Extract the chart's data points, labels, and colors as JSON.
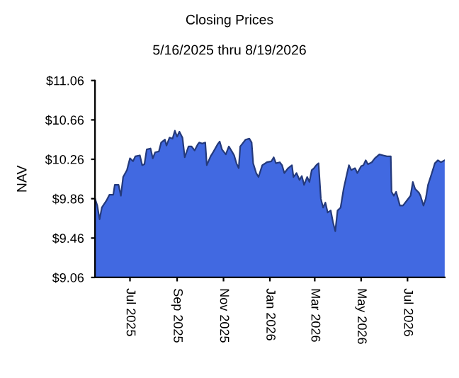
{
  "chart_data": {
    "type": "area",
    "title": "Closing Prices",
    "subtitle": "5/16/2025 thru 8/19/2026",
    "ylabel": "NAV",
    "x": [
      "2025-05-16",
      "2025-05-19",
      "2025-05-22",
      "2025-05-25",
      "2025-05-31",
      "2025-06-04",
      "2025-06-09",
      "2025-06-11",
      "2025-06-16",
      "2025-06-19",
      "2025-06-22",
      "2025-06-27",
      "2025-07-01",
      "2025-07-05",
      "2025-07-08",
      "2025-07-14",
      "2025-07-17",
      "2025-07-20",
      "2025-07-23",
      "2025-07-28",
      "2025-07-31",
      "2025-08-03",
      "2025-08-08",
      "2025-08-11",
      "2025-08-16",
      "2025-08-18",
      "2025-08-22",
      "2025-08-26",
      "2025-08-29",
      "2025-09-01",
      "2025-09-04",
      "2025-09-08",
      "2025-09-11",
      "2025-09-16",
      "2025-09-20",
      "2025-09-24",
      "2025-09-28",
      "2025-09-30",
      "2025-10-04",
      "2025-10-08",
      "2025-10-10",
      "2025-10-15",
      "2025-10-19",
      "2025-10-24",
      "2025-10-27",
      "2025-10-30",
      "2025-11-04",
      "2025-11-08",
      "2025-11-12",
      "2025-11-15",
      "2025-11-18",
      "2025-11-21",
      "2025-11-23",
      "2025-11-27",
      "2025-11-30",
      "2025-12-05",
      "2025-12-08",
      "2025-12-10",
      "2025-12-14",
      "2025-12-17",
      "2025-12-22",
      "2025-12-28",
      "2026-01-03",
      "2026-01-06",
      "2026-01-09",
      "2026-01-14",
      "2026-01-17",
      "2026-01-20",
      "2026-01-25",
      "2026-01-30",
      "2026-02-01",
      "2026-02-05",
      "2026-02-09",
      "2026-02-12",
      "2026-02-15",
      "2026-02-19",
      "2026-02-22",
      "2026-02-25",
      "2026-02-28",
      "2026-03-03",
      "2026-03-06",
      "2026-03-09",
      "2026-03-12",
      "2026-03-15",
      "2026-03-18",
      "2026-03-22",
      "2026-03-25",
      "2026-03-28",
      "2026-03-31",
      "2026-04-04",
      "2026-04-08",
      "2026-04-12",
      "2026-04-15",
      "2026-04-18",
      "2026-04-23",
      "2026-04-26",
      "2026-05-01",
      "2026-05-04",
      "2026-05-07",
      "2026-05-10",
      "2026-05-15",
      "2026-05-19",
      "2026-05-25",
      "2026-05-30",
      "2026-06-04",
      "2026-06-09",
      "2026-06-10",
      "2026-06-13",
      "2026-06-16",
      "2026-06-21",
      "2026-06-25",
      "2026-06-30",
      "2026-07-05",
      "2026-07-08",
      "2026-07-11",
      "2026-07-16",
      "2026-07-18",
      "2026-07-22",
      "2026-07-25",
      "2026-07-28",
      "2026-08-02",
      "2026-08-06",
      "2026-08-10",
      "2026-08-14",
      "2026-08-19"
    ],
    "series": [
      {
        "color": "#4169e1",
        "values": [
          9.86,
          9.79,
          9.65,
          9.77,
          9.84,
          9.9,
          9.9,
          10.0,
          10.0,
          9.89,
          10.08,
          10.15,
          10.27,
          10.24,
          10.29,
          10.3,
          10.2,
          10.21,
          10.36,
          10.37,
          10.27,
          10.33,
          10.34,
          10.43,
          10.46,
          10.4,
          10.48,
          10.47,
          10.55,
          10.49,
          10.54,
          10.48,
          10.28,
          10.39,
          10.39,
          10.35,
          10.41,
          10.43,
          10.42,
          10.43,
          10.2,
          10.29,
          10.34,
          10.41,
          10.44,
          10.36,
          10.31,
          10.39,
          10.34,
          10.3,
          10.22,
          10.17,
          10.39,
          10.43,
          10.46,
          10.47,
          10.43,
          10.22,
          10.12,
          10.08,
          10.2,
          10.23,
          10.24,
          10.28,
          10.22,
          10.23,
          10.2,
          10.12,
          10.17,
          10.2,
          10.08,
          10.12,
          10.05,
          10.09,
          10.0,
          10.08,
          10.03,
          10.15,
          10.17,
          10.2,
          10.22,
          9.86,
          9.77,
          9.82,
          9.72,
          9.74,
          9.62,
          9.53,
          9.74,
          9.77,
          9.96,
          10.1,
          10.2,
          10.15,
          10.17,
          10.12,
          10.19,
          10.2,
          10.25,
          10.21,
          10.23,
          10.27,
          10.31,
          10.3,
          10.29,
          10.29,
          9.93,
          9.89,
          9.93,
          9.79,
          9.79,
          9.84,
          9.89,
          10.03,
          9.96,
          9.92,
          9.89,
          9.79,
          9.86,
          10.0,
          10.12,
          10.22,
          10.25,
          10.23,
          10.25
        ]
      }
    ],
    "xlim": [
      "2025-05-16",
      "2026-08-19"
    ],
    "xticks": [
      {
        "value": "2025-07-01",
        "label": "Jul 2025"
      },
      {
        "value": "2025-09-01",
        "label": "Sep 2025"
      },
      {
        "value": "2025-11-01",
        "label": "Nov 2025"
      },
      {
        "value": "2026-01-01",
        "label": "Jan 2026"
      },
      {
        "value": "2026-03-01",
        "label": "Mar 2026"
      },
      {
        "value": "2026-05-01",
        "label": "May 2026"
      },
      {
        "value": "2026-07-01",
        "label": "Jul 2026"
      }
    ],
    "ylim": [
      9.06,
      11.06
    ],
    "yticks": [
      {
        "value": 9.06,
        "label": "$9.06"
      },
      {
        "value": 9.46,
        "label": "$9.46"
      },
      {
        "value": 9.86,
        "label": "$9.86"
      },
      {
        "value": 10.26,
        "label": "$10.26"
      },
      {
        "value": 10.66,
        "label": "$10.66"
      },
      {
        "value": 11.06,
        "label": "$11.06"
      }
    ],
    "grid": false,
    "legend": false
  }
}
